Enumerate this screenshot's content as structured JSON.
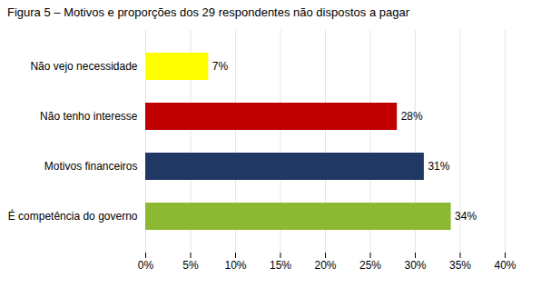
{
  "chart_data": {
    "type": "bar",
    "orientation": "horizontal",
    "title": "Figura 5 – Motivos e proporções dos 29 respondentes não dispostos a pagar",
    "categories": [
      "É competência do governo",
      "Motivos financeiros",
      "Não tenho interesse",
      "Não vejo necessidade"
    ],
    "values": [
      34,
      31,
      28,
      7
    ],
    "value_labels": [
      "34%",
      "31%",
      "28%",
      "7%"
    ],
    "colors": [
      "#8db832",
      "#1f3864",
      "#c00000",
      "#ffff00"
    ],
    "xlim": [
      0,
      40
    ],
    "xticks": [
      {
        "value": 0,
        "label": "0%"
      },
      {
        "value": 5,
        "label": "5%"
      },
      {
        "value": 10,
        "label": "10%"
      },
      {
        "value": 15,
        "label": "15%"
      },
      {
        "value": 20,
        "label": "20%"
      },
      {
        "value": 25,
        "label": "25%"
      },
      {
        "value": 30,
        "label": "30%"
      },
      {
        "value": 35,
        "label": "35%"
      },
      {
        "value": 40,
        "label": "40%"
      }
    ],
    "grid": true,
    "data_labels": true
  }
}
